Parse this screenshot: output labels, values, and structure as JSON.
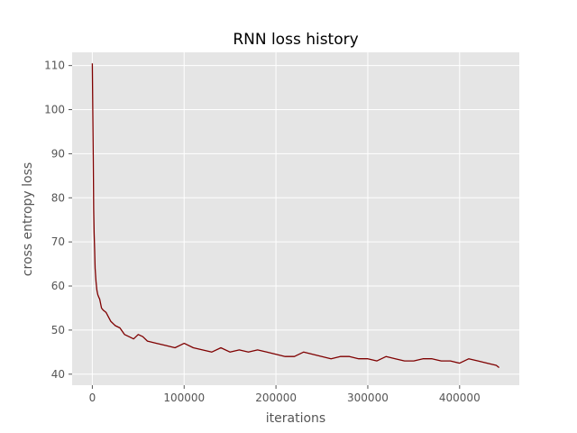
{
  "chart_data": {
    "type": "line",
    "title": "RNN loss history",
    "xlabel": "iterations",
    "ylabel": "cross entropy loss",
    "xlim": [
      -22000,
      465000
    ],
    "ylim": [
      37.5,
      113
    ],
    "xticks": [
      0,
      100000,
      200000,
      300000,
      400000
    ],
    "xtick_labels": [
      "0",
      "100000",
      "200000",
      "300000",
      "400000"
    ],
    "yticks": [
      40,
      50,
      60,
      70,
      80,
      90,
      100,
      110
    ],
    "ytick_labels": [
      "40",
      "50",
      "60",
      "70",
      "80",
      "90",
      "100",
      "110"
    ],
    "grid": true,
    "legend": "none",
    "colors": {
      "background": "#e5e5e5",
      "grid": "#ffffff",
      "line": "#7f0000"
    },
    "series": [
      {
        "x": [
          0,
          500,
          1000,
          1500,
          2000,
          2500,
          3000,
          4000,
          5000,
          6000,
          7000,
          8000,
          10000,
          12000,
          15000,
          20000,
          25000,
          30000,
          35000,
          40000,
          45000,
          50000,
          55000,
          60000,
          70000,
          80000,
          90000,
          100000,
          110000,
          120000,
          130000,
          140000,
          150000,
          160000,
          170000,
          180000,
          190000,
          200000,
          210000,
          220000,
          230000,
          240000,
          250000,
          260000,
          270000,
          280000,
          290000,
          300000,
          310000,
          320000,
          330000,
          340000,
          350000,
          360000,
          370000,
          380000,
          390000,
          400000,
          410000,
          420000,
          430000,
          440000,
          443000
        ],
        "y": [
          110.5,
          100,
          90,
          77.5,
          72,
          68,
          64,
          61,
          59,
          58,
          57.5,
          57,
          55,
          54.5,
          54,
          52,
          51,
          50.5,
          49,
          48.5,
          48,
          49,
          48.5,
          47.5,
          47,
          46.5,
          46,
          47,
          46,
          45.5,
          45,
          46,
          45,
          45.5,
          45,
          45.5,
          45,
          44.5,
          44,
          44,
          45,
          44.5,
          44,
          43.5,
          44,
          44,
          43.5,
          43.5,
          43,
          44,
          43.5,
          43,
          43,
          43.5,
          43.5,
          43,
          43,
          42.5,
          43.5,
          43,
          42.5,
          42,
          41.5
        ]
      }
    ]
  }
}
